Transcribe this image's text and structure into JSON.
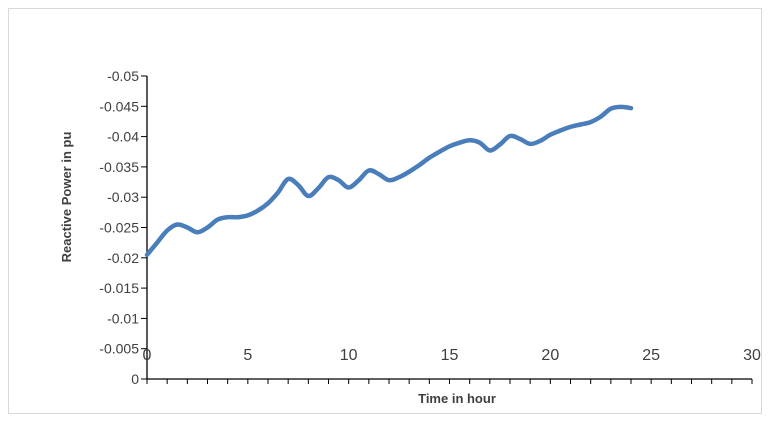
{
  "chart_data": {
    "type": "line",
    "xlabel": "Time in hour",
    "ylabel": "Reactive Power in pu",
    "xlim": [
      0,
      30
    ],
    "ylim": [
      0,
      -0.05
    ],
    "x_ticks": [
      0,
      5,
      10,
      15,
      20,
      25,
      30
    ],
    "x_tick_labels": [
      "0",
      "5",
      "10",
      "15",
      "20",
      "25",
      "30"
    ],
    "y_ticks": [
      0,
      -0.005,
      -0.01,
      -0.015,
      -0.02,
      -0.025,
      -0.03,
      -0.035,
      -0.04,
      -0.045,
      -0.05
    ],
    "y_tick_labels": [
      "0",
      "-0.005",
      "-0.01",
      "-0.015",
      "-0.02",
      "-0.025",
      "-0.03",
      "-0.035",
      "-0.04",
      "-0.045",
      "-0.05"
    ],
    "grid": false,
    "legend": "none",
    "color": "#4a7ebb",
    "series": [
      {
        "x": [
          0,
          0.5,
          1,
          1.5,
          2,
          2.5,
          3,
          3.5,
          4,
          4.5,
          5,
          5.5,
          6,
          6.5,
          7,
          7.5,
          8,
          8.5,
          9,
          9.5,
          10,
          10.5,
          11,
          11.5,
          12,
          12.5,
          13,
          13.5,
          14,
          14.5,
          15,
          15.5,
          16,
          16.5,
          17,
          17.5,
          18,
          18.5,
          19,
          19.5,
          20,
          20.5,
          21,
          21.5,
          22,
          22.5,
          23,
          23.5,
          24
        ],
        "y": [
          -0.0205,
          -0.0225,
          -0.0245,
          -0.0255,
          -0.025,
          -0.0242,
          -0.025,
          -0.0263,
          -0.0267,
          -0.0267,
          -0.027,
          -0.0278,
          -0.029,
          -0.0308,
          -0.033,
          -0.032,
          -0.0302,
          -0.0315,
          -0.0333,
          -0.0328,
          -0.0316,
          -0.0328,
          -0.0344,
          -0.0338,
          -0.0328,
          -0.0333,
          -0.0342,
          -0.0353,
          -0.0365,
          -0.0375,
          -0.0384,
          -0.039,
          -0.0394,
          -0.039,
          -0.0377,
          -0.0387,
          -0.0401,
          -0.0396,
          -0.0388,
          -0.0393,
          -0.0403,
          -0.041,
          -0.0416,
          -0.042,
          -0.0424,
          -0.0433,
          -0.0446,
          -0.0449,
          -0.0447
        ]
      }
    ]
  }
}
